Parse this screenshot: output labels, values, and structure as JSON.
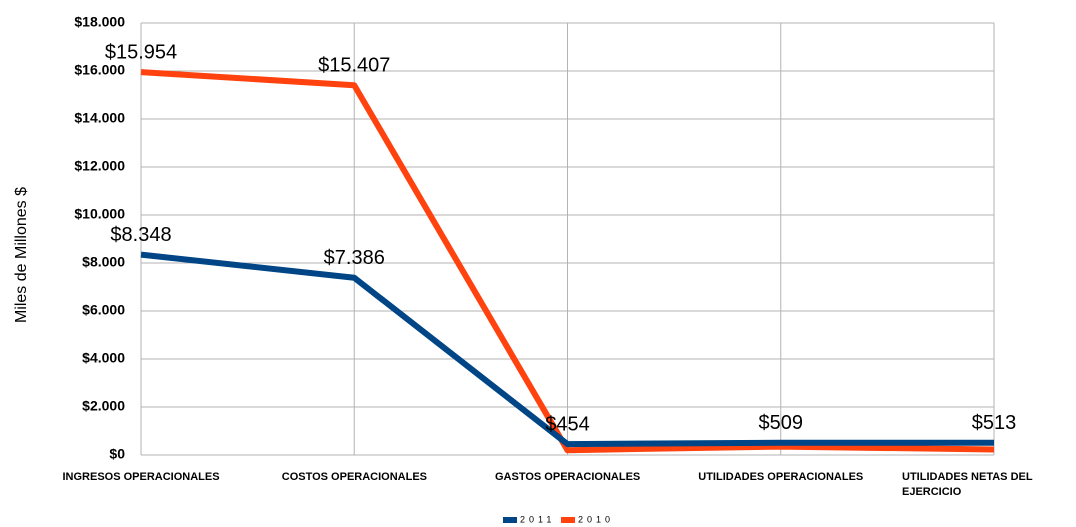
{
  "chart_data": {
    "type": "line",
    "y_label": "Miles de Millones $",
    "categories": [
      "INGRESOS OPERACIONALES",
      "COSTOS OPERACIONALES",
      "GASTOS OPERACIONALES",
      "UTILIDADES OPERACIONALES",
      "UTILIDADES NETAS DEL EJERCICIO"
    ],
    "series": [
      {
        "name": "2011",
        "color": "#004586",
        "values": [
          8348,
          7386,
          454,
          509,
          513
        ],
        "value_labels": [
          "$8.348",
          "$7.386",
          "$454",
          "$509",
          "$513"
        ]
      },
      {
        "name": "2010",
        "color": "#ff420e",
        "values": [
          15954,
          15407,
          200,
          350,
          230
        ],
        "value_labels": [
          "$15.954",
          "$15.407",
          null,
          null,
          null
        ]
      }
    ],
    "ylim": [
      0,
      18000
    ],
    "yticks": [
      {
        "value": 0,
        "label": "$0"
      },
      {
        "value": 2000,
        "label": "$2.000"
      },
      {
        "value": 4000,
        "label": "$4.000"
      },
      {
        "value": 6000,
        "label": "$6.000"
      },
      {
        "value": 8000,
        "label": "$8.000"
      },
      {
        "value": 10000,
        "label": "$10.000"
      },
      {
        "value": 12000,
        "label": "$12.000"
      },
      {
        "value": 14000,
        "label": "$14.000"
      },
      {
        "value": 16000,
        "label": "$16.000"
      },
      {
        "value": 18000,
        "label": "$18.000"
      }
    ],
    "grid": true,
    "legend": "bottom"
  }
}
